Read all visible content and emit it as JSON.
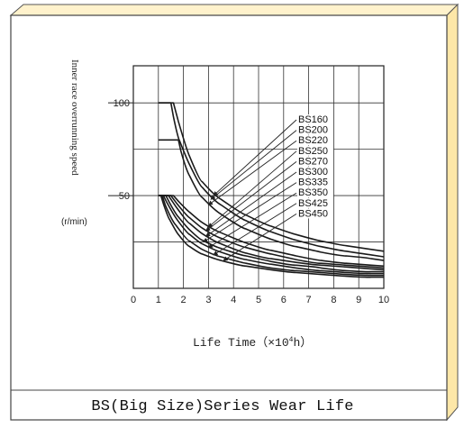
{
  "caption": "BS(Big Size)Series Wear Life",
  "chart_data": {
    "type": "line",
    "title": "",
    "xlabel": "Life Time (×10⁴h)",
    "xlabel_parts": {
      "main": "Life Time（×10",
      "sup": "4",
      "tail": "h）"
    },
    "ylabel": "Inner race overrunning speed",
    "yunit": "(r/min)",
    "xlim": [
      0,
      10
    ],
    "ylim": [
      0,
      120
    ],
    "x_ticks": [
      "0",
      "1",
      "2",
      "3",
      "4",
      "5",
      "6",
      "7",
      "8",
      "9",
      "10"
    ],
    "y_ticks": [
      {
        "value": 100,
        "label": "100"
      },
      {
        "value": 50,
        "label": "50"
      }
    ],
    "grid": true,
    "line_color": "#1a1a1a",
    "series": [
      {
        "name": "BS160",
        "points": [
          [
            1.0,
            100
          ],
          [
            1.6,
            100
          ],
          [
            2.0,
            80
          ],
          [
            2.5,
            62
          ],
          [
            3.0,
            53
          ],
          [
            4.0,
            43
          ],
          [
            5.0,
            36
          ],
          [
            6.0,
            31
          ],
          [
            7.0,
            27
          ],
          [
            8.0,
            24
          ],
          [
            9.0,
            22
          ],
          [
            10.0,
            20
          ]
        ]
      },
      {
        "name": "BS200",
        "points": [
          [
            1.0,
            100
          ],
          [
            1.5,
            100
          ],
          [
            1.7,
            85
          ],
          [
            2.0,
            74
          ],
          [
            2.5,
            59
          ],
          [
            3.0,
            50
          ],
          [
            4.0,
            40
          ],
          [
            5.0,
            33
          ],
          [
            6.0,
            28
          ],
          [
            7.0,
            24
          ],
          [
            8.0,
            21
          ],
          [
            9.0,
            19
          ],
          [
            10.0,
            17
          ]
        ]
      },
      {
        "name": "BS220",
        "points": [
          [
            1.0,
            80
          ],
          [
            1.8,
            80
          ],
          [
            2.0,
            68
          ],
          [
            2.5,
            53
          ],
          [
            3.0,
            45
          ],
          [
            4.0,
            35
          ],
          [
            5.0,
            29
          ],
          [
            6.0,
            24
          ],
          [
            7.0,
            21
          ],
          [
            8.0,
            18
          ],
          [
            9.0,
            17
          ],
          [
            10.0,
            15
          ]
        ]
      },
      {
        "name": "BS250",
        "points": [
          [
            1.0,
            50
          ],
          [
            1.6,
            50
          ],
          [
            2.0,
            44
          ],
          [
            2.5,
            38
          ],
          [
            3.0,
            33
          ],
          [
            4.0,
            27
          ],
          [
            5.0,
            22
          ],
          [
            6.0,
            19
          ],
          [
            7.0,
            16
          ],
          [
            8.0,
            14
          ],
          [
            9.0,
            13
          ],
          [
            10.0,
            12
          ]
        ]
      },
      {
        "name": "BS270",
        "points": [
          [
            1.0,
            50
          ],
          [
            1.5,
            50
          ],
          [
            2.0,
            41
          ],
          [
            2.5,
            35
          ],
          [
            3.0,
            30
          ],
          [
            4.0,
            24
          ],
          [
            5.0,
            20
          ],
          [
            6.0,
            17
          ],
          [
            7.0,
            14
          ],
          [
            8.0,
            13
          ],
          [
            9.0,
            12
          ],
          [
            10.0,
            11
          ]
        ]
      },
      {
        "name": "BS300",
        "points": [
          [
            1.0,
            50
          ],
          [
            1.4,
            50
          ],
          [
            2.0,
            38
          ],
          [
            2.5,
            32
          ],
          [
            3.0,
            27
          ],
          [
            4.0,
            21
          ],
          [
            5.0,
            17
          ],
          [
            6.0,
            15
          ],
          [
            7.0,
            13
          ],
          [
            8.0,
            12
          ],
          [
            9.0,
            11
          ],
          [
            10.0,
            10
          ]
        ]
      },
      {
        "name": "BS335",
        "points": [
          [
            1.0,
            50
          ],
          [
            1.3,
            50
          ],
          [
            1.6,
            42
          ],
          [
            2.0,
            35
          ],
          [
            2.5,
            28
          ],
          [
            3.0,
            24
          ],
          [
            4.0,
            19
          ],
          [
            5.0,
            16
          ],
          [
            6.0,
            13
          ],
          [
            7.0,
            12
          ],
          [
            8.0,
            10
          ],
          [
            9.0,
            9
          ],
          [
            10.0,
            9
          ]
        ]
      },
      {
        "name": "BS350",
        "points": [
          [
            1.0,
            50
          ],
          [
            1.2,
            50
          ],
          [
            1.5,
            42
          ],
          [
            2.0,
            32
          ],
          [
            2.5,
            26
          ],
          [
            3.0,
            22
          ],
          [
            4.0,
            17
          ],
          [
            5.0,
            14
          ],
          [
            6.0,
            12
          ],
          [
            7.0,
            10
          ],
          [
            8.0,
            9
          ],
          [
            9.0,
            8
          ],
          [
            10.0,
            8
          ]
        ]
      },
      {
        "name": "BS425",
        "points": [
          [
            1.0,
            50
          ],
          [
            1.15,
            50
          ],
          [
            1.4,
            40
          ],
          [
            2.0,
            28
          ],
          [
            2.5,
            23
          ],
          [
            3.0,
            19
          ],
          [
            4.0,
            15
          ],
          [
            5.0,
            12
          ],
          [
            6.0,
            10
          ],
          [
            7.0,
            9
          ],
          [
            8.0,
            8
          ],
          [
            9.0,
            7
          ],
          [
            10.0,
            7
          ]
        ]
      },
      {
        "name": "BS450",
        "points": [
          [
            1.0,
            50
          ],
          [
            1.1,
            50
          ],
          [
            1.3,
            41
          ],
          [
            1.6,
            33
          ],
          [
            2.0,
            25
          ],
          [
            2.5,
            20
          ],
          [
            3.0,
            17
          ],
          [
            4.0,
            13
          ],
          [
            5.0,
            11
          ],
          [
            6.0,
            9
          ],
          [
            7.0,
            8
          ],
          [
            8.0,
            7
          ],
          [
            9.0,
            6
          ],
          [
            10.0,
            6
          ]
        ]
      }
    ],
    "callout_targets": [
      {
        "name": "BS160",
        "x": 3.2,
        "y": 50
      },
      {
        "name": "BS200",
        "x": 3.1,
        "y": 48
      },
      {
        "name": "BS220",
        "x": 3.0,
        "y": 45
      },
      {
        "name": "BS250",
        "x": 3.0,
        "y": 33
      },
      {
        "name": "BS270",
        "x": 2.9,
        "y": 31
      },
      {
        "name": "BS300",
        "x": 2.9,
        "y": 28
      },
      {
        "name": "BS335",
        "x": 2.8,
        "y": 25
      },
      {
        "name": "BS350",
        "x": 3.0,
        "y": 22
      },
      {
        "name": "BS425",
        "x": 3.2,
        "y": 18
      },
      {
        "name": "BS450",
        "x": 3.6,
        "y": 15
      }
    ]
  }
}
